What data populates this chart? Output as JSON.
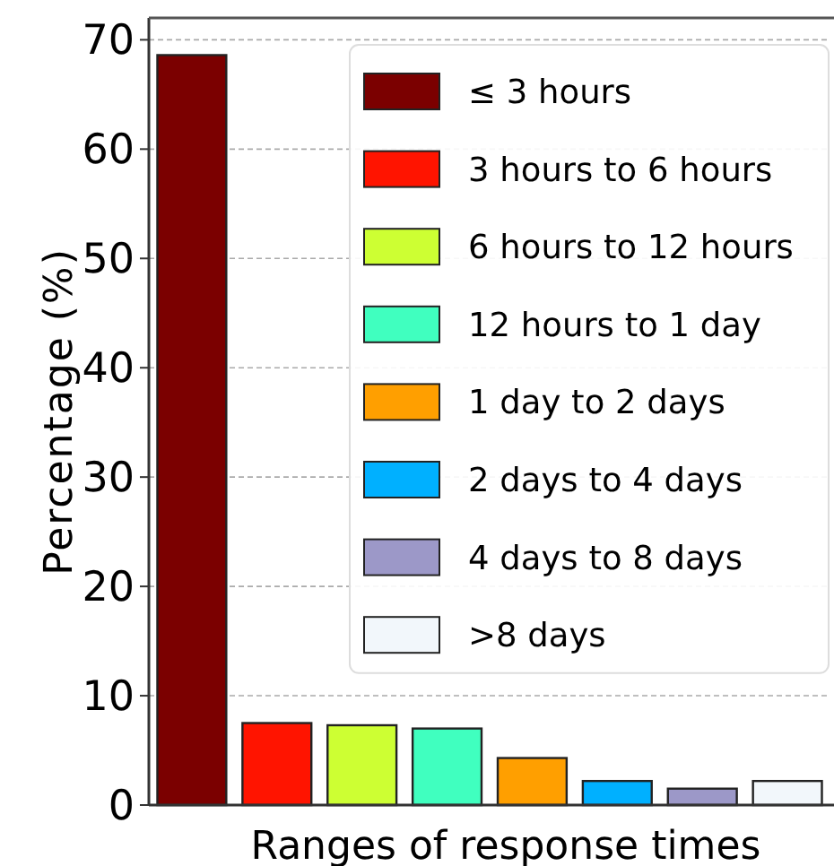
{
  "chart_data": {
    "type": "bar",
    "xlabel": "Ranges of response times",
    "ylabel": "Percentage (%)",
    "categories": [
      null,
      null,
      null,
      null,
      null,
      null,
      null,
      null
    ],
    "series": [
      {
        "name": "≤ 3 hours",
        "color": "#7b0000",
        "values": [
          68.6,
          null,
          null,
          null,
          null,
          null,
          null,
          null
        ]
      },
      {
        "name": "3 hours to 6 hours",
        "color": "#ff1400",
        "values": [
          null,
          7.5,
          null,
          null,
          null,
          null,
          null,
          null
        ]
      },
      {
        "name": "6 hours to 12 hours",
        "color": "#cdff33",
        "values": [
          null,
          null,
          7.3,
          null,
          null,
          null,
          null,
          null
        ]
      },
      {
        "name": "12 hours to 1 day",
        "color": "#40ffbf",
        "values": [
          null,
          null,
          null,
          7.0,
          null,
          null,
          null,
          null
        ]
      },
      {
        "name": "1 day to 2 days",
        "color": "#ff9f00",
        "values": [
          null,
          null,
          null,
          null,
          4.3,
          null,
          null,
          null
        ]
      },
      {
        "name": "2 days to 4 days",
        "color": "#00b0ff",
        "values": [
          null,
          null,
          null,
          null,
          null,
          2.2,
          null,
          null
        ]
      },
      {
        "name": "4 days to 8 days",
        "color": "#9c98c8",
        "values": [
          null,
          null,
          null,
          null,
          null,
          null,
          1.5,
          null
        ]
      },
      {
        "name": ">8 days",
        "color": "#f2f7fb",
        "values": [
          null,
          null,
          null,
          null,
          null,
          null,
          null,
          2.2
        ]
      }
    ],
    "ylim": [
      0,
      72
    ],
    "yticks": [
      0,
      10,
      20,
      30,
      40,
      50,
      60,
      70
    ],
    "grid": "y",
    "legend": "top right",
    "tick_labels": "y"
  }
}
